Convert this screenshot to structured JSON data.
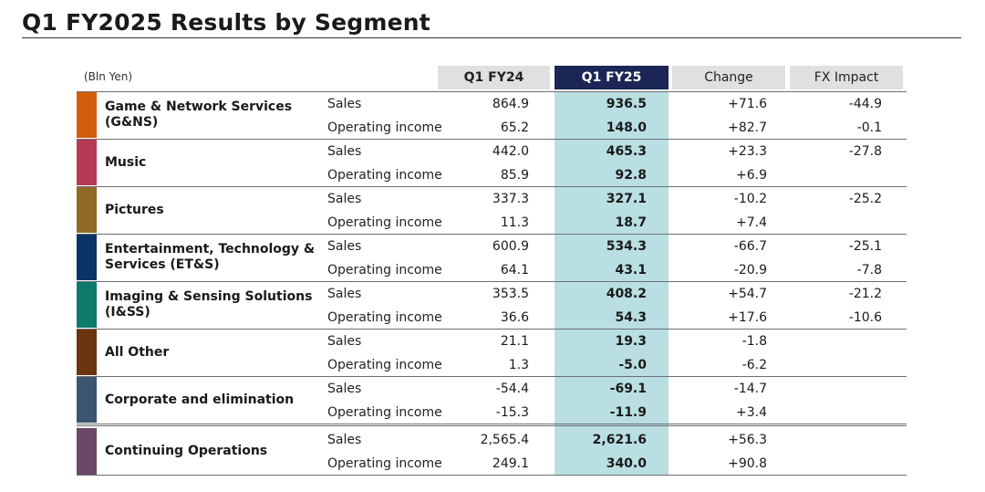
{
  "title": "Q1 FY2025 Results by Segment",
  "unit": "(Bln Yen)",
  "colors": {
    "highlight_header": "#1c2656",
    "highlight_column": "#b9dfe3",
    "header_bg": "#e0e0e0"
  },
  "headers": [
    "Q1 FY24",
    "Q1 FY25",
    "Change",
    "FX Impact"
  ],
  "segments": [
    {
      "name": "Game & Network Services (G&NS)",
      "color": "#d45d0c",
      "rows": [
        {
          "label": "Sales",
          "fy24": "864.9",
          "fy25": "936.5",
          "change": "+71.6",
          "fx": "-44.9"
        },
        {
          "label": "Operating income",
          "fy24": "65.2",
          "fy25": "148.0",
          "change": "+82.7",
          "fx": "-0.1"
        }
      ]
    },
    {
      "name": "Music",
      "color": "#b63a53",
      "rows": [
        {
          "label": "Sales",
          "fy24": "442.0",
          "fy25": "465.3",
          "change": "+23.3",
          "fx": "-27.8"
        },
        {
          "label": "Operating income",
          "fy24": "85.9",
          "fy25": "92.8",
          "change": "+6.9",
          "fx": ""
        }
      ]
    },
    {
      "name": "Pictures",
      "color": "#8e6a24",
      "rows": [
        {
          "label": "Sales",
          "fy24": "337.3",
          "fy25": "327.1",
          "change": "-10.2",
          "fx": "-25.2"
        },
        {
          "label": "Operating income",
          "fy24": "11.3",
          "fy25": "18.7",
          "change": "+7.4",
          "fx": ""
        }
      ]
    },
    {
      "name": "Entertainment, Technology & Services (ET&S)",
      "color": "#0b3366",
      "rows": [
        {
          "label": "Sales",
          "fy24": "600.9",
          "fy25": "534.3",
          "change": "-66.7",
          "fx": "-25.1"
        },
        {
          "label": "Operating income",
          "fy24": "64.1",
          "fy25": "43.1",
          "change": "-20.9",
          "fx": "-7.8"
        }
      ]
    },
    {
      "name": "Imaging & Sensing Solutions (I&SS)",
      "color": "#0d7a6c",
      "rows": [
        {
          "label": "Sales",
          "fy24": "353.5",
          "fy25": "408.2",
          "change": "+54.7",
          "fx": "-21.2"
        },
        {
          "label": "Operating income",
          "fy24": "36.6",
          "fy25": "54.3",
          "change": "+17.6",
          "fx": "-10.6"
        }
      ]
    },
    {
      "name": "All Other",
      "color": "#6a3410",
      "rows": [
        {
          "label": "Sales",
          "fy24": "21.1",
          "fy25": "19.3",
          "change": "-1.8",
          "fx": ""
        },
        {
          "label": "Operating income",
          "fy24": "1.3",
          "fy25": "-5.0",
          "change": "-6.2",
          "fx": ""
        }
      ]
    },
    {
      "name": "Corporate and elimination",
      "color": "#3c546e",
      "rows": [
        {
          "label": "Sales",
          "fy24": "-54.4",
          "fy25": "-69.1",
          "change": "-14.7",
          "fx": ""
        },
        {
          "label": "Operating income",
          "fy24": "-15.3",
          "fy25": "-11.9",
          "change": "+3.4",
          "fx": ""
        }
      ]
    }
  ],
  "total": {
    "name": "Continuing Operations",
    "color": "#6a4866",
    "rows": [
      {
        "label": "Sales",
        "fy24": "2,565.4",
        "fy25": "2,621.6",
        "change": "+56.3",
        "fx": ""
      },
      {
        "label": "Operating income",
        "fy24": "249.1",
        "fy25": "340.0",
        "change": "+90.8",
        "fx": ""
      }
    ]
  }
}
